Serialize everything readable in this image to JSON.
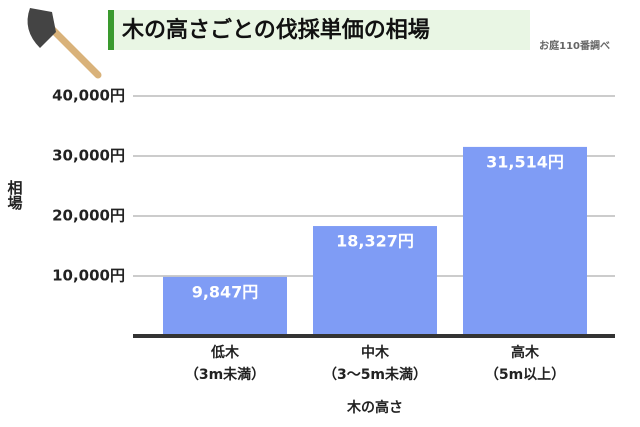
{
  "chart_data": {
    "type": "bar",
    "title": "木の高さごとの伐採単価の相場",
    "source": "お庭110番調べ",
    "y_label": "相場",
    "x_label": "木の高さ",
    "categories": [
      "低木\n（3m未満）",
      "中木\n（3〜5m未満）",
      "高木\n（5m以上）"
    ],
    "values": [
      9847,
      18327,
      31514
    ],
    "value_labels": [
      "9,847円",
      "18,327円",
      "31,514円"
    ],
    "color": "#7f9cf5",
    "ylim": [
      0,
      40000
    ],
    "yticks": [
      {
        "value": 10000,
        "label": "10,000円"
      },
      {
        "value": 20000,
        "label": "20,000円"
      },
      {
        "value": 30000,
        "label": "30,000円"
      },
      {
        "value": 40000,
        "label": "40,000円"
      }
    ],
    "grid": true
  }
}
